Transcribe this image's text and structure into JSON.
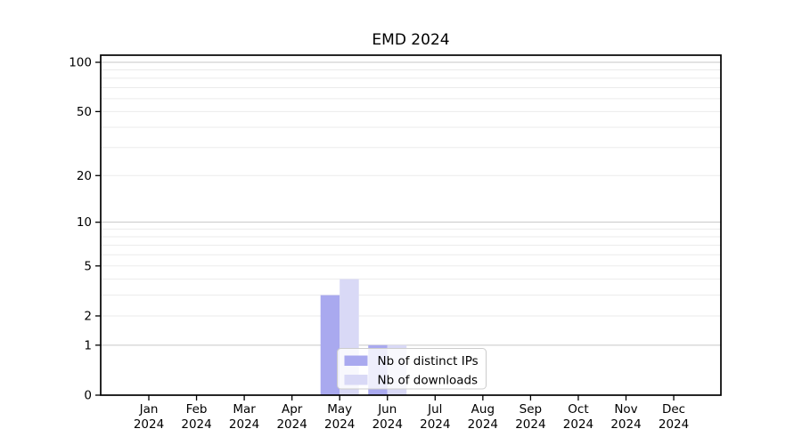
{
  "chart": {
    "title": "EMD 2024"
  },
  "chart_data": {
    "type": "bar",
    "title": "EMD 2024",
    "x_year": "2024",
    "categories": [
      "Jan",
      "Feb",
      "Mar",
      "Apr",
      "May",
      "Jun",
      "Jul",
      "Aug",
      "Sep",
      "Oct",
      "Nov",
      "Dec"
    ],
    "series": [
      {
        "name": "Nb of distinct IPs",
        "color": "#a9a9ef",
        "values": [
          0,
          0,
          0,
          0,
          3,
          1,
          0,
          0,
          0,
          0,
          0,
          0
        ]
      },
      {
        "name": "Nb of downloads",
        "color": "#d9d9f6",
        "values": [
          0,
          0,
          0,
          0,
          4,
          1,
          0,
          0,
          0,
          0,
          0,
          0
        ]
      }
    ],
    "y_scale": "log1p",
    "ylim": [
      0,
      110
    ],
    "y_ticks": [
      0,
      1,
      2,
      5,
      10,
      20,
      50,
      100
    ],
    "grid": {
      "orientation": "horizontal",
      "major_values": [
        1,
        10,
        100
      ],
      "minor_values": [
        2,
        3,
        4,
        5,
        6,
        7,
        8,
        9,
        20,
        30,
        40,
        50,
        60,
        70,
        80,
        90
      ],
      "major_color": "#c7c7c7",
      "minor_color": "#ebebeb"
    },
    "legend": {
      "position": "lower-center-inside",
      "entries": [
        "Nb of distinct IPs",
        "Nb of downloads"
      ],
      "border_color": "#cccccc",
      "background_color": "#ffffff"
    }
  }
}
